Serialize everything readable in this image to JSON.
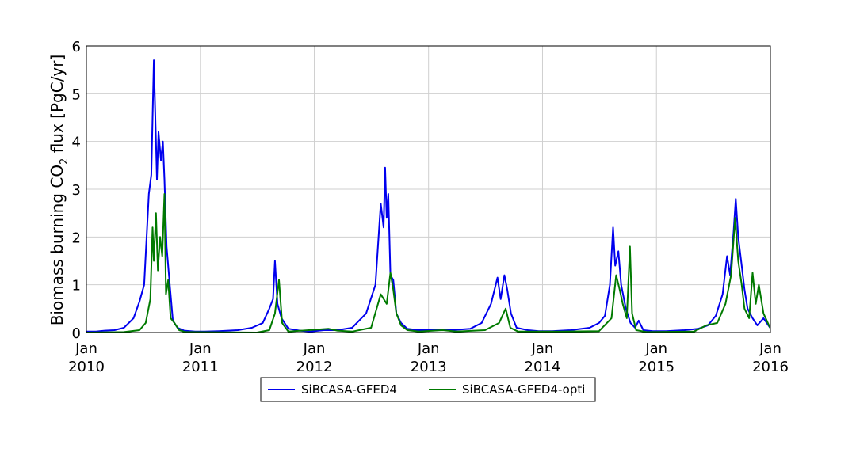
{
  "chart_data": {
    "type": "line",
    "title": "",
    "xlabel": "",
    "ylabel_parts": [
      "Biomass burning CO",
      "2",
      " flux [PgC/yr]"
    ],
    "xlim": [
      "2010-01-01",
      "2016-01-01"
    ],
    "ylim": [
      0,
      6
    ],
    "yticks": [
      "0",
      "1",
      "2",
      "3",
      "4",
      "5",
      "6"
    ],
    "xticks": [
      {
        "date": "2010-01-01",
        "month": "Jan",
        "year": "2010"
      },
      {
        "date": "2011-01-01",
        "month": "Jan",
        "year": "2011"
      },
      {
        "date": "2012-01-01",
        "month": "Jan",
        "year": "2012"
      },
      {
        "date": "2013-01-01",
        "month": "Jan",
        "year": "2013"
      },
      {
        "date": "2014-01-01",
        "month": "Jan",
        "year": "2014"
      },
      {
        "date": "2015-01-01",
        "month": "Jan",
        "year": "2015"
      },
      {
        "date": "2016-01-01",
        "month": "Jan",
        "year": "2016"
      }
    ],
    "grid": true,
    "legend_position": "bottom-center",
    "series": [
      {
        "name": "SiBCASA-GFED4",
        "color": "#0000ee",
        "points": [
          [
            "2010-01-01",
            0.02
          ],
          [
            "2010-02-01",
            0.02
          ],
          [
            "2010-03-01",
            0.04
          ],
          [
            "2010-04-01",
            0.05
          ],
          [
            "2010-05-01",
            0.1
          ],
          [
            "2010-06-01",
            0.3
          ],
          [
            "2010-06-20",
            0.65
          ],
          [
            "2010-07-05",
            1.0
          ],
          [
            "2010-07-20",
            2.9
          ],
          [
            "2010-07-28",
            3.3
          ],
          [
            "2010-08-05",
            5.7
          ],
          [
            "2010-08-10",
            4.5
          ],
          [
            "2010-08-15",
            3.2
          ],
          [
            "2010-08-20",
            4.2
          ],
          [
            "2010-08-28",
            3.6
          ],
          [
            "2010-09-03",
            4.0
          ],
          [
            "2010-09-08",
            3.2
          ],
          [
            "2010-09-15",
            1.8
          ],
          [
            "2010-09-25",
            1.0
          ],
          [
            "2010-10-05",
            0.25
          ],
          [
            "2010-10-20",
            0.1
          ],
          [
            "2010-11-10",
            0.04
          ],
          [
            "2010-12-15",
            0.02
          ],
          [
            "2011-01-15",
            0.02
          ],
          [
            "2011-03-01",
            0.03
          ],
          [
            "2011-05-01",
            0.05
          ],
          [
            "2011-06-15",
            0.1
          ],
          [
            "2011-07-20",
            0.2
          ],
          [
            "2011-08-10",
            0.5
          ],
          [
            "2011-08-22",
            0.7
          ],
          [
            "2011-08-28",
            1.5
          ],
          [
            "2011-09-05",
            0.6
          ],
          [
            "2011-09-18",
            0.3
          ],
          [
            "2011-10-10",
            0.08
          ],
          [
            "2011-11-15",
            0.04
          ],
          [
            "2011-12-20",
            0.02
          ],
          [
            "2012-02-01",
            0.05
          ],
          [
            "2012-03-15",
            0.05
          ],
          [
            "2012-05-01",
            0.1
          ],
          [
            "2012-06-15",
            0.4
          ],
          [
            "2012-07-15",
            1.0
          ],
          [
            "2012-08-01",
            2.7
          ],
          [
            "2012-08-10",
            2.2
          ],
          [
            "2012-08-15",
            3.45
          ],
          [
            "2012-08-20",
            2.4
          ],
          [
            "2012-08-25",
            2.9
          ],
          [
            "2012-09-01",
            1.2
          ],
          [
            "2012-09-10",
            1.1
          ],
          [
            "2012-09-20",
            0.4
          ],
          [
            "2012-10-05",
            0.2
          ],
          [
            "2012-10-25",
            0.08
          ],
          [
            "2012-12-01",
            0.05
          ],
          [
            "2013-01-15",
            0.05
          ],
          [
            "2013-03-15",
            0.05
          ],
          [
            "2013-05-15",
            0.08
          ],
          [
            "2013-06-20",
            0.2
          ],
          [
            "2013-07-20",
            0.6
          ],
          [
            "2013-08-10",
            1.15
          ],
          [
            "2013-08-20",
            0.7
          ],
          [
            "2013-09-01",
            1.2
          ],
          [
            "2013-09-10",
            0.9
          ],
          [
            "2013-09-22",
            0.4
          ],
          [
            "2013-10-10",
            0.1
          ],
          [
            "2013-11-15",
            0.05
          ],
          [
            "2013-12-20",
            0.03
          ],
          [
            "2014-02-01",
            0.03
          ],
          [
            "2014-04-01",
            0.05
          ],
          [
            "2014-06-01",
            0.1
          ],
          [
            "2014-07-01",
            0.2
          ],
          [
            "2014-07-20",
            0.35
          ],
          [
            "2014-08-05",
            1.0
          ],
          [
            "2014-08-15",
            2.2
          ],
          [
            "2014-08-22",
            1.4
          ],
          [
            "2014-09-01",
            1.7
          ],
          [
            "2014-09-10",
            1.0
          ],
          [
            "2014-09-25",
            0.5
          ],
          [
            "2014-10-10",
            0.2
          ],
          [
            "2014-10-25",
            0.1
          ],
          [
            "2014-11-05",
            0.25
          ],
          [
            "2014-11-20",
            0.05
          ],
          [
            "2014-12-20",
            0.03
          ],
          [
            "2015-02-01",
            0.03
          ],
          [
            "2015-04-01",
            0.05
          ],
          [
            "2015-05-15",
            0.08
          ],
          [
            "2015-06-15",
            0.15
          ],
          [
            "2015-07-10",
            0.35
          ],
          [
            "2015-08-01",
            0.8
          ],
          [
            "2015-08-15",
            1.6
          ],
          [
            "2015-08-25",
            1.2
          ],
          [
            "2015-09-05",
            2.1
          ],
          [
            "2015-09-12",
            2.8
          ],
          [
            "2015-09-20",
            2.0
          ],
          [
            "2015-10-01",
            1.4
          ],
          [
            "2015-10-10",
            0.9
          ],
          [
            "2015-10-20",
            0.5
          ],
          [
            "2015-11-05",
            0.3
          ],
          [
            "2015-11-20",
            0.15
          ],
          [
            "2015-12-10",
            0.3
          ],
          [
            "2015-12-31",
            0.1
          ]
        ]
      },
      {
        "name": "SiBCASA-GFED4-opti",
        "color": "#007a00",
        "points": [
          [
            "2010-01-01",
            0.0
          ],
          [
            "2010-05-01",
            0.01
          ],
          [
            "2010-06-20",
            0.05
          ],
          [
            "2010-07-10",
            0.2
          ],
          [
            "2010-07-25",
            0.7
          ],
          [
            "2010-08-01",
            2.2
          ],
          [
            "2010-08-05",
            1.5
          ],
          [
            "2010-08-12",
            2.5
          ],
          [
            "2010-08-18",
            1.3
          ],
          [
            "2010-08-25",
            2.0
          ],
          [
            "2010-09-01",
            1.6
          ],
          [
            "2010-09-08",
            2.9
          ],
          [
            "2010-09-13",
            0.8
          ],
          [
            "2010-09-20",
            1.1
          ],
          [
            "2010-09-28",
            0.3
          ],
          [
            "2010-10-10",
            0.2
          ],
          [
            "2010-10-25",
            0.05
          ],
          [
            "2010-11-15",
            0.01
          ],
          [
            "2011-07-01",
            0.0
          ],
          [
            "2011-08-10",
            0.05
          ],
          [
            "2011-08-28",
            0.4
          ],
          [
            "2011-09-10",
            1.1
          ],
          [
            "2011-09-20",
            0.2
          ],
          [
            "2011-10-10",
            0.02
          ],
          [
            "2012-02-15",
            0.08
          ],
          [
            "2012-03-15",
            0.04
          ],
          [
            "2012-05-01",
            0.02
          ],
          [
            "2012-07-01",
            0.1
          ],
          [
            "2012-08-01",
            0.8
          ],
          [
            "2012-08-20",
            0.6
          ],
          [
            "2012-09-01",
            1.25
          ],
          [
            "2012-09-10",
            0.9
          ],
          [
            "2012-09-20",
            0.4
          ],
          [
            "2012-10-05",
            0.15
          ],
          [
            "2012-10-25",
            0.05
          ],
          [
            "2012-12-01",
            0.02
          ],
          [
            "2013-02-15",
            0.05
          ],
          [
            "2013-04-01",
            0.02
          ],
          [
            "2013-07-01",
            0.05
          ],
          [
            "2013-08-15",
            0.2
          ],
          [
            "2013-09-05",
            0.5
          ],
          [
            "2013-09-20",
            0.1
          ],
          [
            "2013-10-15",
            0.02
          ],
          [
            "2014-03-01",
            0.02
          ],
          [
            "2014-07-01",
            0.03
          ],
          [
            "2014-08-10",
            0.3
          ],
          [
            "2014-08-25",
            1.2
          ],
          [
            "2014-09-05",
            0.9
          ],
          [
            "2014-09-15",
            0.6
          ],
          [
            "2014-09-28",
            0.3
          ],
          [
            "2014-10-08",
            1.8
          ],
          [
            "2014-10-15",
            0.4
          ],
          [
            "2014-10-28",
            0.05
          ],
          [
            "2014-12-01",
            0.01
          ],
          [
            "2015-05-01",
            0.02
          ],
          [
            "2015-06-10",
            0.15
          ],
          [
            "2015-07-15",
            0.2
          ],
          [
            "2015-08-10",
            0.6
          ],
          [
            "2015-08-28",
            1.2
          ],
          [
            "2015-09-10",
            2.4
          ],
          [
            "2015-09-20",
            1.5
          ],
          [
            "2015-10-01",
            1.0
          ],
          [
            "2015-10-10",
            0.5
          ],
          [
            "2015-10-25",
            0.3
          ],
          [
            "2015-11-05",
            1.25
          ],
          [
            "2015-11-15",
            0.6
          ],
          [
            "2015-11-25",
            1.0
          ],
          [
            "2015-12-10",
            0.4
          ],
          [
            "2015-12-31",
            0.1
          ]
        ]
      }
    ]
  }
}
